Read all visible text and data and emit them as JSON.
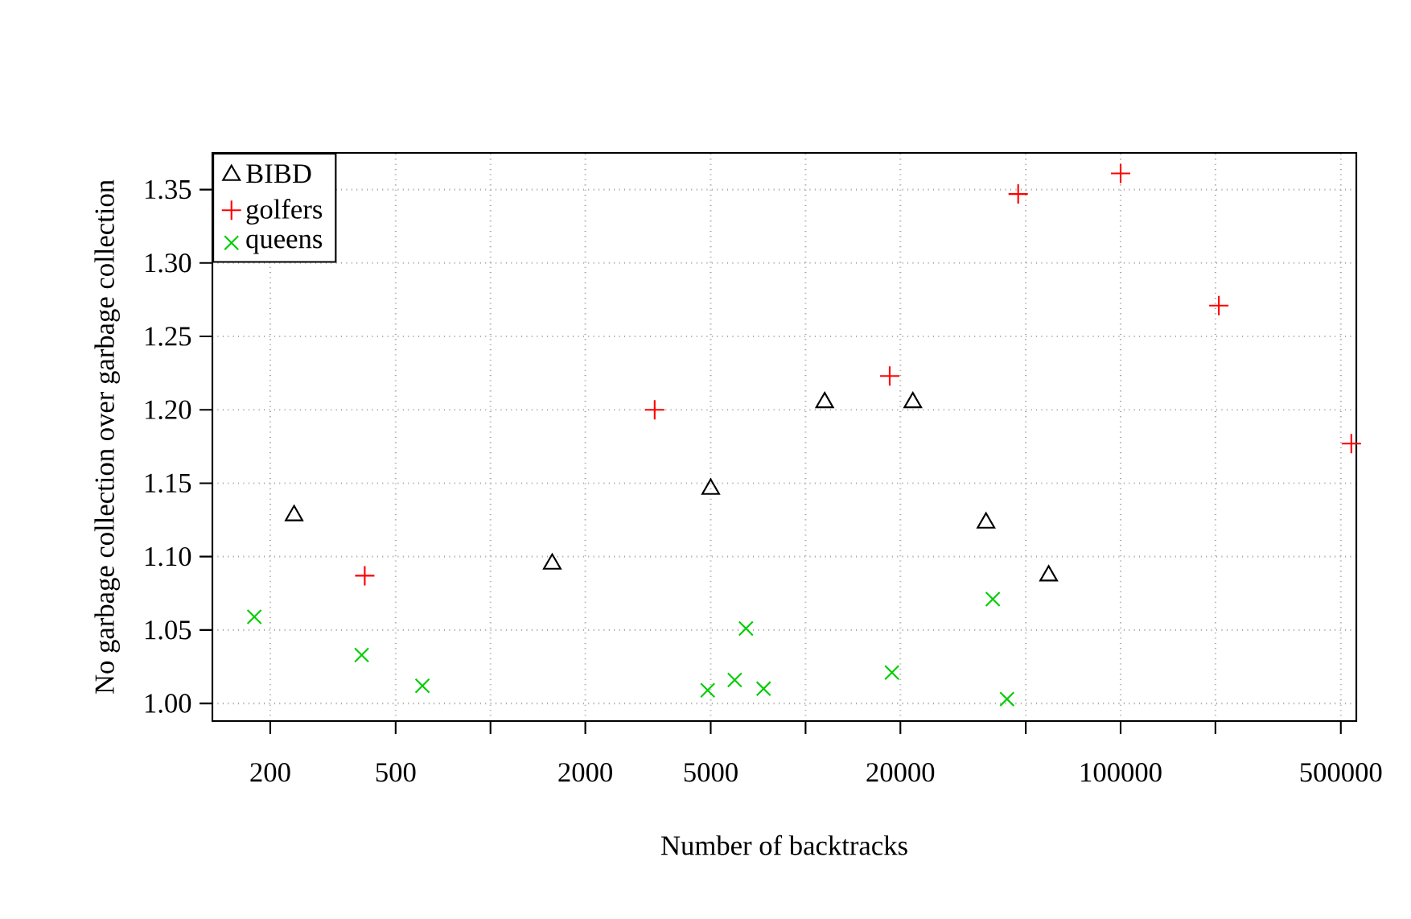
{
  "chart_data": {
    "type": "scatter",
    "xlabel": "Number of backtracks",
    "ylabel": "No garbage collection over garbage collection",
    "log": "x",
    "grid": true,
    "legend": "top left",
    "xlim": [
      131,
      560000
    ],
    "ylim": [
      0.988,
      1.375
    ],
    "xticks": [
      200,
      500,
      {
        "value": 1000,
        "label": null
      },
      2000,
      5000,
      {
        "value": 10000,
        "label": null
      },
      20000,
      {
        "value": 50000,
        "label": null
      },
      100000,
      {
        "value": 200000,
        "label": null
      },
      500000
    ],
    "yticks": [
      {
        "value": 1.0,
        "label": "1.00"
      },
      {
        "value": 1.05,
        "label": "1.05"
      },
      {
        "value": 1.1,
        "label": "1.10"
      },
      {
        "value": 1.15,
        "label": "1.15"
      },
      {
        "value": 1.2,
        "label": "1.20"
      },
      {
        "value": 1.25,
        "label": "1.25"
      },
      {
        "value": 1.3,
        "label": "1.30"
      },
      {
        "value": 1.35,
        "label": "1.35"
      }
    ],
    "series": [
      {
        "name": "BIBD",
        "color": "#000000",
        "marker": "triangle",
        "x": [
          238,
          1570,
          5000,
          11500,
          21900,
          37400,
          59100
        ],
        "values": [
          1.128,
          1.095,
          1.146,
          1.205,
          1.205,
          1.123,
          1.087
        ]
      },
      {
        "name": "golfers",
        "color": "#ff0000",
        "marker": "plus",
        "x": [
          399,
          3320,
          18500,
          47300,
          100000,
          205000,
          540000
        ],
        "values": [
          1.087,
          1.2,
          1.223,
          1.347,
          1.361,
          1.271,
          1.177
        ]
      },
      {
        "name": "queens",
        "color": "#00cd00",
        "marker": "cross",
        "x": [
          178,
          390,
          608,
          4890,
          5960,
          6470,
          7360,
          18800,
          39300,
          43600
        ],
        "values": [
          1.059,
          1.033,
          1.012,
          1.009,
          1.016,
          1.051,
          1.01,
          1.021,
          1.071,
          1.003
        ]
      }
    ]
  }
}
